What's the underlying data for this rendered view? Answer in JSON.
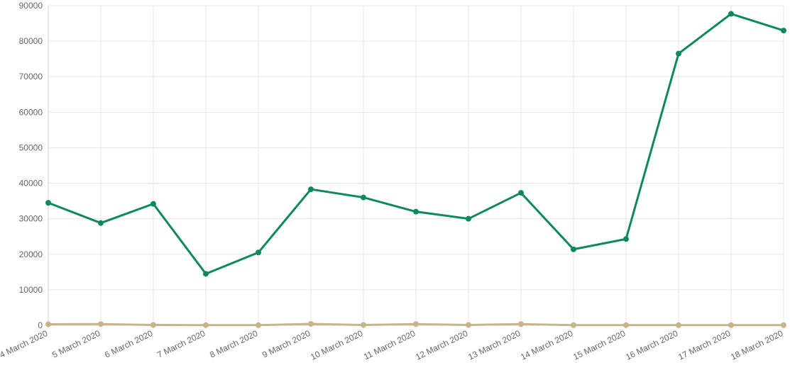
{
  "chart_data": {
    "type": "line",
    "categories": [
      "4 March 2020",
      "5 March 2020",
      "6 March 2020",
      "7 March 2020",
      "8 March 2020",
      "9 March 2020",
      "10 March 2020",
      "11 March 2020",
      "12 March 2020",
      "13 March 2020",
      "14 March 2020",
      "15 March 2020",
      "16 March 2020",
      "17 March 2020",
      "18 March 2020"
    ],
    "series": [
      {
        "color": "#0e8a5a",
        "values": [
          34500,
          28800,
          34200,
          14500,
          20500,
          38300,
          36000,
          32000,
          30000,
          37300,
          21400,
          24300,
          76500,
          87700,
          83000
        ]
      },
      {
        "color": "#c8b48a",
        "values": [
          300,
          350,
          100,
          50,
          50,
          400,
          100,
          350,
          100,
          350,
          50,
          50,
          50,
          50,
          50
        ]
      }
    ],
    "ylim": [
      0,
      90000
    ],
    "yticks": [
      0,
      10000,
      20000,
      30000,
      40000,
      50000,
      60000,
      70000,
      80000,
      90000
    ],
    "grid": true,
    "title": "",
    "xlabel": "",
    "ylabel": ""
  }
}
